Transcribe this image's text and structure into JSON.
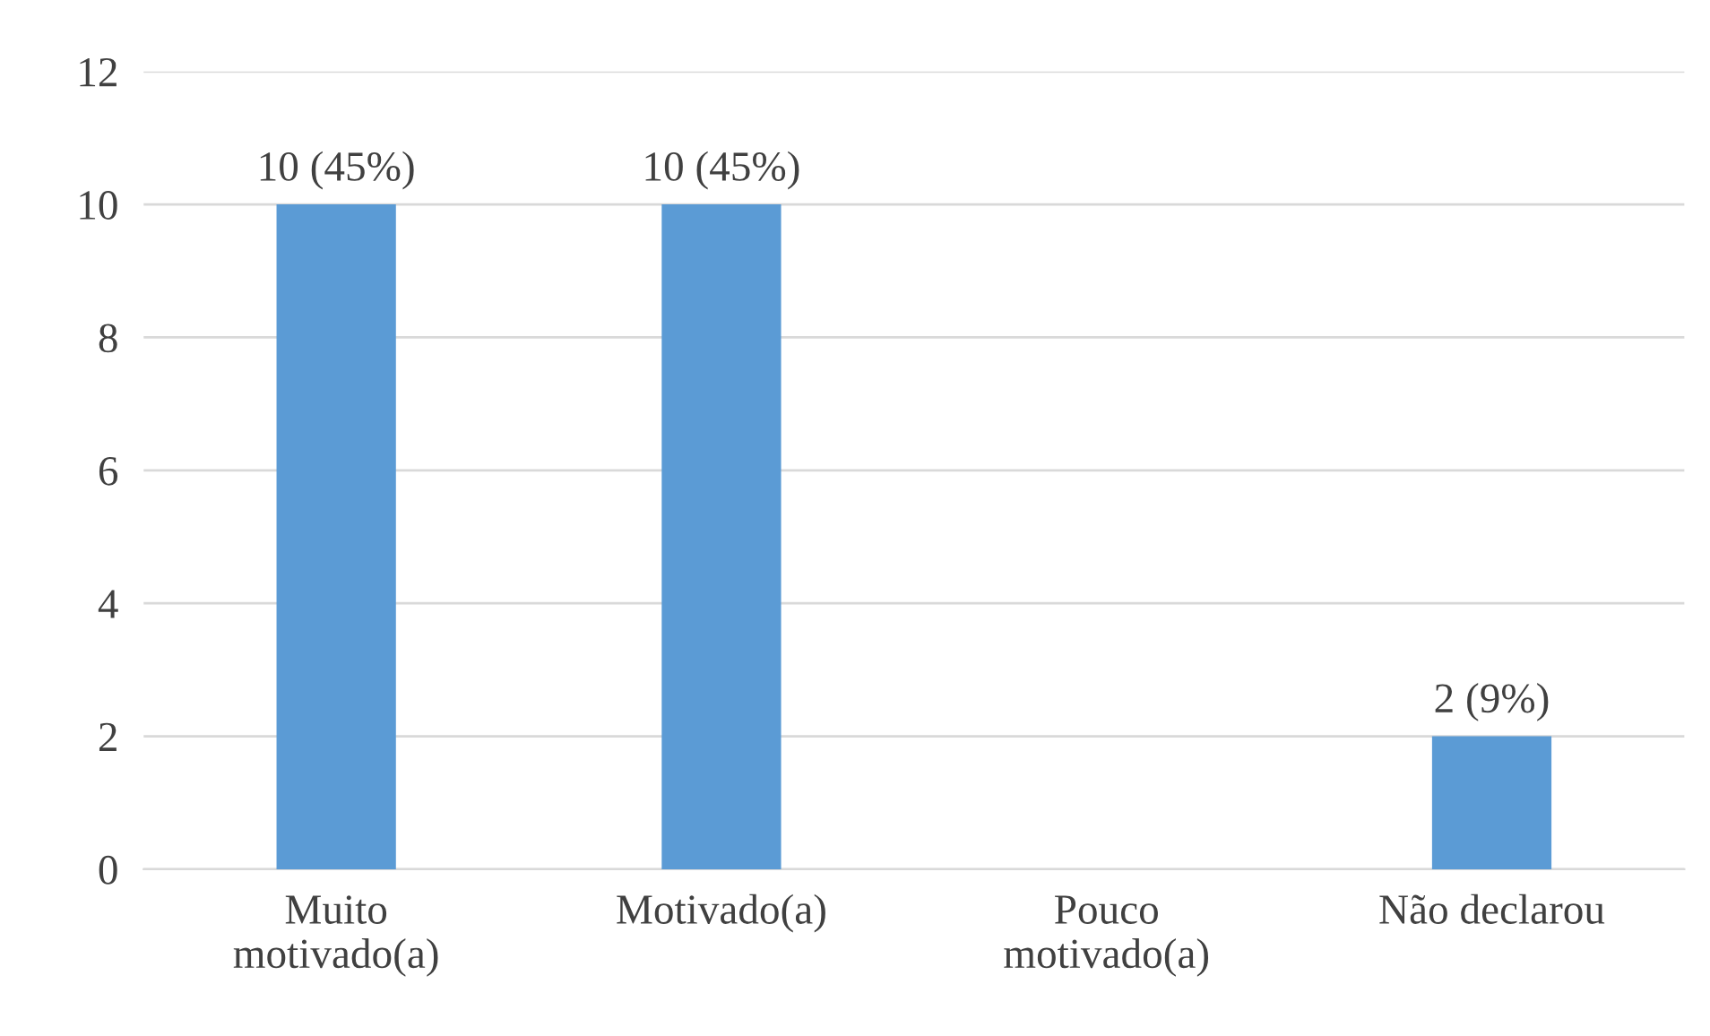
{
  "chart_data": {
    "type": "bar",
    "categories": [
      "Muito\nmotivado(a)",
      "Motivado(a)",
      "Pouco\nmotivado(a)",
      "Não declarou"
    ],
    "values": [
      10,
      10,
      0,
      2
    ],
    "value_labels": [
      "10 (45%)",
      "10 (45%)",
      null,
      "2 (9%)"
    ],
    "color": "#5b9bd5",
    "ylim": [
      0,
      12
    ],
    "yticks": [
      0,
      2,
      4,
      6,
      8,
      10,
      12
    ],
    "grid": "y",
    "legend": false
  }
}
